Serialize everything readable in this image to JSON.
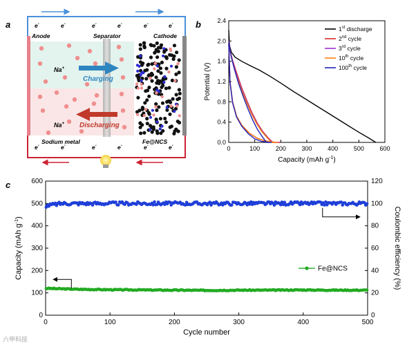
{
  "panel_a": {
    "label": "a",
    "electron": "e",
    "electron_sup": "-",
    "anode": "Anode",
    "separator": "Separator",
    "cathode": "Cathode",
    "ion_top": "Na",
    "ion_bottom": "Na",
    "ion_sup": "+",
    "charging": "Charging",
    "discharging": "Discharging",
    "sodium_metal": "Sodium metal",
    "fe_ncs": "Fe@NCS",
    "colors": {
      "wire_blue": "#4a90d9",
      "wire_red": "#cc2233",
      "charging_arrow": "#2e86c1",
      "discharging_arrow": "#c0392b",
      "top_band": "#e3f4ee",
      "bottom_band": "#fae6e6",
      "na_ion": "#ef8f8f"
    }
  },
  "panel_b": {
    "label": "b",
    "legend": [
      "1",
      "2",
      "3",
      "10",
      "100"
    ],
    "legend_suffix": [
      "st discharge",
      "nd cycle",
      "rd cycle",
      "th cycle",
      "th cycle"
    ]
  },
  "panel_c": {
    "label": "c",
    "legend": "Fe@NCS"
  },
  "watermark": "六甲科技",
  "chart_data": [
    {
      "type": "line",
      "title": "",
      "xlabel": "Capacity (mAh g",
      "xlabel_sup": "-1",
      "xlabel_tail": ")",
      "ylabel": "Potential (V)",
      "xlim": [
        0,
        600
      ],
      "ylim": [
        0.0,
        2.4
      ],
      "xticks": [
        0,
        100,
        200,
        300,
        400,
        500,
        600
      ],
      "yticks": [
        0.0,
        0.4,
        0.8,
        1.2,
        1.6,
        2.0,
        2.4
      ],
      "legend_position": "top-right",
      "series": [
        {
          "name": "1st discharge",
          "color": "#000000",
          "x": [
            0,
            3,
            10,
            25,
            50,
            80,
            120,
            160,
            200,
            250,
            300,
            350,
            400,
            450,
            500,
            540,
            565
          ],
          "y": [
            2.22,
            1.92,
            1.78,
            1.68,
            1.6,
            1.52,
            1.42,
            1.3,
            1.17,
            1.0,
            0.84,
            0.68,
            0.52,
            0.36,
            0.2,
            0.08,
            0.0
          ]
        },
        {
          "name": "2nd cycle",
          "color": "#d62728",
          "x": [
            0,
            5,
            15,
            30,
            50,
            80,
            110,
            140,
            165,
            185,
            198,
            185,
            170,
            150,
            130,
            110,
            90,
            70,
            50,
            30,
            15,
            5,
            2
          ],
          "y": [
            1.95,
            1.2,
            0.8,
            0.52,
            0.34,
            0.18,
            0.08,
            0.03,
            0.01,
            0.0,
            0.0,
            0.0,
            0.0,
            0.1,
            0.22,
            0.38,
            0.58,
            0.82,
            1.08,
            1.38,
            1.62,
            1.82,
            2.0
          ]
        },
        {
          "name": "3rd cycle",
          "color": "#9b30d0",
          "x": [
            0,
            5,
            15,
            30,
            50,
            80,
            110,
            140,
            165,
            183,
            195,
            183,
            168,
            148,
            128,
            108,
            88,
            68,
            48,
            28,
            14,
            5,
            2
          ],
          "y": [
            1.95,
            1.2,
            0.8,
            0.52,
            0.34,
            0.18,
            0.08,
            0.03,
            0.01,
            0.0,
            0.0,
            0.0,
            0.0,
            0.1,
            0.22,
            0.38,
            0.58,
            0.82,
            1.08,
            1.38,
            1.62,
            1.82,
            2.0
          ]
        },
        {
          "name": "10th cycle",
          "color": "#ff7f0e",
          "x": [
            0,
            5,
            15,
            30,
            50,
            80,
            110,
            140,
            163,
            180,
            192,
            180,
            165,
            146,
            126,
            106,
            86,
            66,
            46,
            26,
            13,
            5,
            2
          ],
          "y": [
            1.95,
            1.2,
            0.8,
            0.52,
            0.34,
            0.18,
            0.08,
            0.03,
            0.01,
            0.0,
            0.0,
            0.0,
            0.0,
            0.1,
            0.22,
            0.38,
            0.58,
            0.82,
            1.08,
            1.38,
            1.62,
            1.82,
            2.0
          ]
        },
        {
          "name": "100th cycle",
          "color": "#1f1fb4",
          "x": [
            0,
            5,
            15,
            30,
            50,
            75,
            100,
            125,
            145,
            158,
            165,
            158,
            145,
            128,
            110,
            92,
            74,
            56,
            38,
            22,
            10,
            4,
            1
          ],
          "y": [
            1.95,
            1.18,
            0.78,
            0.5,
            0.32,
            0.17,
            0.07,
            0.02,
            0.01,
            0.0,
            0.0,
            0.0,
            0.0,
            0.12,
            0.26,
            0.44,
            0.66,
            0.9,
            1.16,
            1.44,
            1.68,
            1.86,
            2.0
          ]
        }
      ]
    },
    {
      "type": "scatter",
      "title": "",
      "xlabel": "Cycle number",
      "ylabel": "Capacity (mAh g",
      "ylabel_sup": "-1",
      "ylabel_tail": ")",
      "y2label": "Coulombic efficiency (%)",
      "xlim": [
        0,
        500
      ],
      "ylim": [
        0,
        600
      ],
      "y2lim": [
        0,
        120
      ],
      "xticks": [
        0,
        100,
        200,
        300,
        400,
        500
      ],
      "yticks": [
        0,
        100,
        200,
        300,
        400,
        500,
        600
      ],
      "y2ticks": [
        0,
        20,
        40,
        60,
        80,
        100,
        120
      ],
      "legend_position": "right",
      "series": [
        {
          "name": "Fe@NCS",
          "axis": "left",
          "color": "#22aa22",
          "x": [
            1,
            25,
            50,
            75,
            100,
            150,
            200,
            250,
            300,
            350,
            400,
            450,
            500
          ],
          "y": [
            120,
            118,
            116,
            115,
            114,
            113,
            112,
            111,
            112,
            112,
            113,
            112,
            112
          ]
        },
        {
          "name": "",
          "axis": "right",
          "color": "#1f3fd8",
          "x": [
            1,
            25,
            50,
            75,
            100,
            150,
            200,
            250,
            300,
            350,
            400,
            450,
            500
          ],
          "y": [
            98,
            100,
            100,
            100,
            100,
            100,
            100,
            100,
            100,
            100,
            100,
            100,
            100
          ]
        }
      ]
    }
  ]
}
